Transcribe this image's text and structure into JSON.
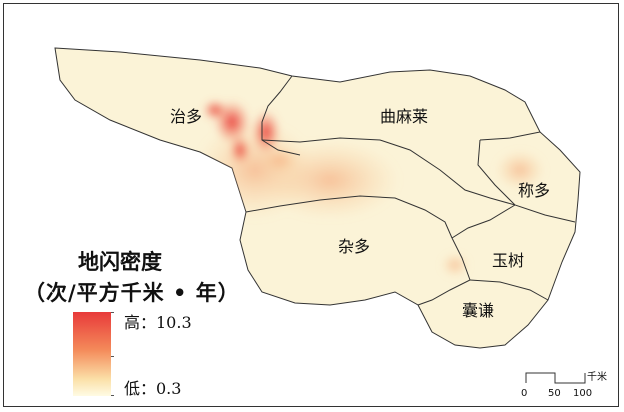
{
  "legend": {
    "title": "地闪密度",
    "unit": "（次/平方千米 • 年）",
    "high_label": "高：10.3",
    "low_label": "低：0.3",
    "color_high": "#e83a3a",
    "color_low": "#fffbe4"
  },
  "regions": [
    "治多",
    "曲麻莱",
    "称多",
    "杂多",
    "玉树",
    "囊谦"
  ],
  "scale_bar": {
    "unit": "千米",
    "ticks": [
      "0",
      "50",
      "100"
    ]
  },
  "colors": {
    "base_fill": "#fbf3d7",
    "boundary": "#333333"
  }
}
